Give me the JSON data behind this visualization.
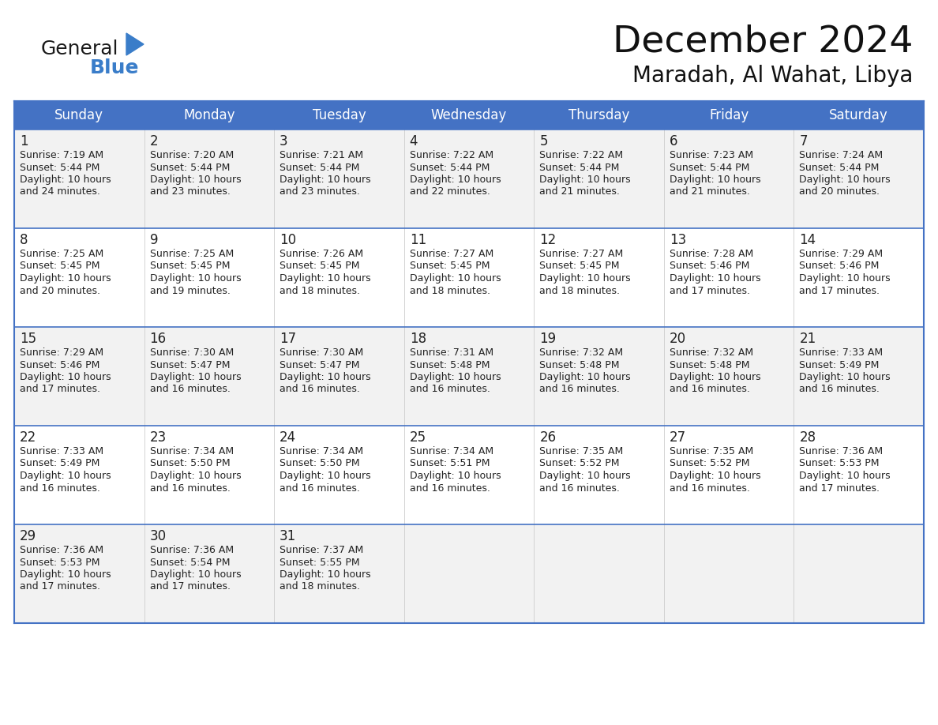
{
  "title": "December 2024",
  "subtitle": "Maradah, Al Wahat, Libya",
  "header_bg_color": "#4472C4",
  "header_text_color": "#FFFFFF",
  "cell_bg_even": "#F2F2F2",
  "cell_bg_odd": "#FFFFFF",
  "border_color": "#4472C4",
  "days_of_week": [
    "Sunday",
    "Monday",
    "Tuesday",
    "Wednesday",
    "Thursday",
    "Friday",
    "Saturday"
  ],
  "weeks": [
    [
      {
        "day": 1,
        "sunrise": "7:19 AM",
        "sunset": "5:44 PM",
        "daylight": "10 hours and 24 minutes."
      },
      {
        "day": 2,
        "sunrise": "7:20 AM",
        "sunset": "5:44 PM",
        "daylight": "10 hours and 23 minutes."
      },
      {
        "day": 3,
        "sunrise": "7:21 AM",
        "sunset": "5:44 PM",
        "daylight": "10 hours and 23 minutes."
      },
      {
        "day": 4,
        "sunrise": "7:22 AM",
        "sunset": "5:44 PM",
        "daylight": "10 hours and 22 minutes."
      },
      {
        "day": 5,
        "sunrise": "7:22 AM",
        "sunset": "5:44 PM",
        "daylight": "10 hours and 21 minutes."
      },
      {
        "day": 6,
        "sunrise": "7:23 AM",
        "sunset": "5:44 PM",
        "daylight": "10 hours and 21 minutes."
      },
      {
        "day": 7,
        "sunrise": "7:24 AM",
        "sunset": "5:44 PM",
        "daylight": "10 hours and 20 minutes."
      }
    ],
    [
      {
        "day": 8,
        "sunrise": "7:25 AM",
        "sunset": "5:45 PM",
        "daylight": "10 hours and 20 minutes."
      },
      {
        "day": 9,
        "sunrise": "7:25 AM",
        "sunset": "5:45 PM",
        "daylight": "10 hours and 19 minutes."
      },
      {
        "day": 10,
        "sunrise": "7:26 AM",
        "sunset": "5:45 PM",
        "daylight": "10 hours and 18 minutes."
      },
      {
        "day": 11,
        "sunrise": "7:27 AM",
        "sunset": "5:45 PM",
        "daylight": "10 hours and 18 minutes."
      },
      {
        "day": 12,
        "sunrise": "7:27 AM",
        "sunset": "5:45 PM",
        "daylight": "10 hours and 18 minutes."
      },
      {
        "day": 13,
        "sunrise": "7:28 AM",
        "sunset": "5:46 PM",
        "daylight": "10 hours and 17 minutes."
      },
      {
        "day": 14,
        "sunrise": "7:29 AM",
        "sunset": "5:46 PM",
        "daylight": "10 hours and 17 minutes."
      }
    ],
    [
      {
        "day": 15,
        "sunrise": "7:29 AM",
        "sunset": "5:46 PM",
        "daylight": "10 hours and 17 minutes."
      },
      {
        "day": 16,
        "sunrise": "7:30 AM",
        "sunset": "5:47 PM",
        "daylight": "10 hours and 16 minutes."
      },
      {
        "day": 17,
        "sunrise": "7:30 AM",
        "sunset": "5:47 PM",
        "daylight": "10 hours and 16 minutes."
      },
      {
        "day": 18,
        "sunrise": "7:31 AM",
        "sunset": "5:48 PM",
        "daylight": "10 hours and 16 minutes."
      },
      {
        "day": 19,
        "sunrise": "7:32 AM",
        "sunset": "5:48 PM",
        "daylight": "10 hours and 16 minutes."
      },
      {
        "day": 20,
        "sunrise": "7:32 AM",
        "sunset": "5:48 PM",
        "daylight": "10 hours and 16 minutes."
      },
      {
        "day": 21,
        "sunrise": "7:33 AM",
        "sunset": "5:49 PM",
        "daylight": "10 hours and 16 minutes."
      }
    ],
    [
      {
        "day": 22,
        "sunrise": "7:33 AM",
        "sunset": "5:49 PM",
        "daylight": "10 hours and 16 minutes."
      },
      {
        "day": 23,
        "sunrise": "7:34 AM",
        "sunset": "5:50 PM",
        "daylight": "10 hours and 16 minutes."
      },
      {
        "day": 24,
        "sunrise": "7:34 AM",
        "sunset": "5:50 PM",
        "daylight": "10 hours and 16 minutes."
      },
      {
        "day": 25,
        "sunrise": "7:34 AM",
        "sunset": "5:51 PM",
        "daylight": "10 hours and 16 minutes."
      },
      {
        "day": 26,
        "sunrise": "7:35 AM",
        "sunset": "5:52 PM",
        "daylight": "10 hours and 16 minutes."
      },
      {
        "day": 27,
        "sunrise": "7:35 AM",
        "sunset": "5:52 PM",
        "daylight": "10 hours and 16 minutes."
      },
      {
        "day": 28,
        "sunrise": "7:36 AM",
        "sunset": "5:53 PM",
        "daylight": "10 hours and 17 minutes."
      }
    ],
    [
      {
        "day": 29,
        "sunrise": "7:36 AM",
        "sunset": "5:53 PM",
        "daylight": "10 hours and 17 minutes."
      },
      {
        "day": 30,
        "sunrise": "7:36 AM",
        "sunset": "5:54 PM",
        "daylight": "10 hours and 17 minutes."
      },
      {
        "day": 31,
        "sunrise": "7:37 AM",
        "sunset": "5:55 PM",
        "daylight": "10 hours and 18 minutes."
      },
      null,
      null,
      null,
      null
    ]
  ],
  "title_fontsize": 34,
  "subtitle_fontsize": 20,
  "header_fontsize": 12,
  "day_num_fontsize": 12,
  "cell_text_fontsize": 9,
  "logo_color_general": "#1a1a1a",
  "logo_color_blue": "#3A7DC9",
  "fig_width": 11.88,
  "fig_height": 9.18,
  "dpi": 100
}
